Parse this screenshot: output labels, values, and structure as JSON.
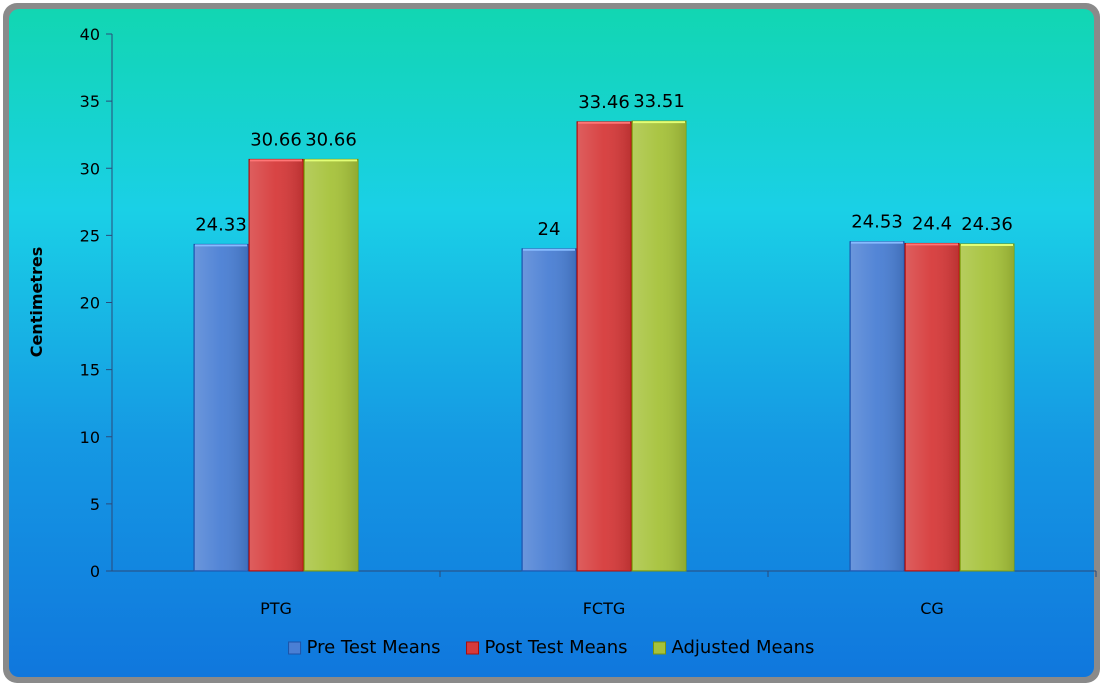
{
  "chart_data": {
    "type": "bar",
    "title": "",
    "xlabel": "",
    "ylabel": "Centimetres",
    "ylim": [
      0,
      40
    ],
    "yticks": [
      0,
      5,
      10,
      15,
      20,
      25,
      30,
      35,
      40
    ],
    "grid": false,
    "legend_position": "bottom",
    "categories": [
      "PTG",
      "FCTG",
      "CG"
    ],
    "series": [
      {
        "name": "Pre Test Means",
        "color": "#4a7fd4",
        "values": [
          24.33,
          24,
          24.53
        ],
        "labels": [
          "24.33",
          "24",
          "24.53"
        ]
      },
      {
        "name": "Post Test Means",
        "color": "#d63a3a",
        "values": [
          30.66,
          33.46,
          24.4
        ],
        "labels": [
          "30.66",
          "33.46",
          "24.4"
        ]
      },
      {
        "name": "Adjusted Means",
        "color": "#a6c23a",
        "values": [
          30.66,
          33.51,
          24.36
        ],
        "labels": [
          "30.66",
          "33.51",
          "24.36"
        ]
      }
    ]
  }
}
